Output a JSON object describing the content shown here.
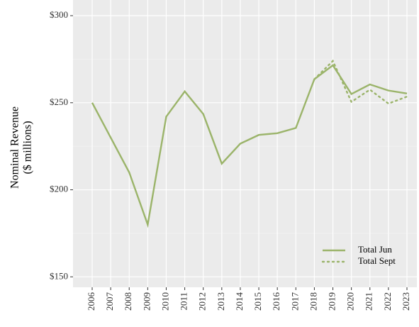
{
  "chart_data": {
    "type": "line",
    "y_label": [
      "Nominal Revenue",
      "($ millions)"
    ],
    "categories": [
      "2006",
      "2007",
      "2008",
      "2009",
      "2010",
      "2011",
      "2012",
      "2013",
      "2014",
      "2015",
      "2016",
      "2017",
      "2018",
      "2019",
      "2020",
      "2021",
      "2022",
      "2023"
    ],
    "series": [
      {
        "name": "Total Jun",
        "color": "#9bb46a",
        "dash": "solid",
        "values": [
          250,
          230,
          210,
          180,
          242,
          256.5,
          243.5,
          215,
          226.5,
          231.5,
          232.5,
          235.5,
          263.5,
          271.5,
          255,
          260.5,
          257,
          255.3
        ]
      },
      {
        "name": "Total Sept",
        "color": "#9bb46a",
        "dash": "dotted",
        "values": [
          null,
          null,
          null,
          null,
          null,
          null,
          null,
          null,
          null,
          null,
          null,
          null,
          263.5,
          274,
          250.5,
          257.5,
          249.5,
          253.5
        ]
      }
    ],
    "ylim": [
      144,
      309
    ],
    "yticks": [
      {
        "value": 150,
        "label": "$150"
      },
      {
        "value": 200,
        "label": "$200"
      },
      {
        "value": 250,
        "label": "$250"
      },
      {
        "value": 300,
        "label": "$300"
      }
    ],
    "grid": true,
    "legend": "bottom-right"
  }
}
